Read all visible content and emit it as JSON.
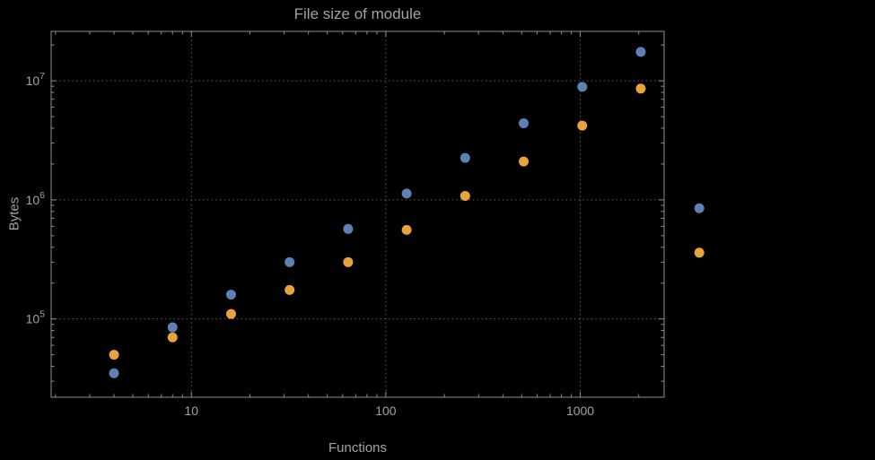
{
  "chart_data": {
    "type": "scatter",
    "title": "File size of module",
    "xlabel": "Functions",
    "ylabel": "Bytes",
    "x_scale": "log",
    "y_scale": "log",
    "xlim": [
      1.9,
      2700
    ],
    "ylim": [
      22000,
      26000000
    ],
    "x_major_ticks": [
      10,
      100,
      1000
    ],
    "x_major_tick_labels": [
      "10",
      "100",
      "1000"
    ],
    "y_major_ticks": [
      100000,
      1000000,
      10000000
    ],
    "y_major_tick_exponents": [
      5,
      6,
      7
    ],
    "grid": "dotted lines at major ticks, both axes",
    "legend_position": "none",
    "x": [
      4,
      8,
      16,
      32,
      64,
      128,
      256,
      512,
      1024,
      2048,
      4096
    ],
    "series": [
      {
        "name": "series-1-blue",
        "color": "#5e81b5",
        "values": [
          35000,
          85000,
          160000,
          300000,
          570000,
          1130000,
          2250000,
          4400000,
          8900000,
          17500000,
          850000
        ]
      },
      {
        "name": "series-2-orange",
        "color": "#e8a33c",
        "values": [
          50000,
          70000,
          110000,
          175000,
          300000,
          560000,
          1080000,
          2100000,
          4200000,
          8600000,
          360000
        ]
      }
    ],
    "marker_size_px": 5.5,
    "colors": {
      "background": "#000000",
      "text": "#a2a2a2",
      "frame": "#8f8f8f",
      "grid": "#5f5f5f"
    }
  }
}
